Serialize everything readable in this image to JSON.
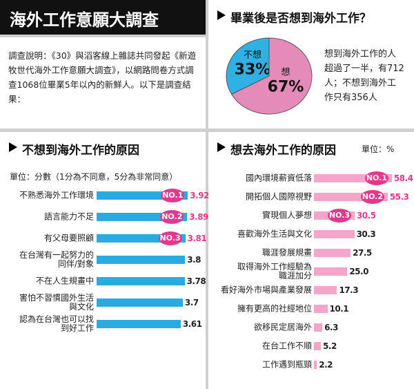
{
  "header": {
    "title": "海外工作意願大調查"
  },
  "intro": "調查說明：《30》與滔客線上雜誌共同發起《新遊牧世代海外工作意願大調查》，以網路問卷方式調查1068位畢業5年以內的新鮮人。以下是調查結果：",
  "chart_data": [
    {
      "type": "pie",
      "title": "畢業後是否想到海外工作？",
      "categories": [
        "想",
        "不想"
      ],
      "values": [
        67,
        33
      ],
      "value_labels": [
        "67%",
        "33%"
      ],
      "colors": [
        "#e48bb9",
        "#2fb1e3"
      ],
      "annotation": "想到海外工作的人超過了一半，有712人；不想到海外工作只有356人"
    },
    {
      "type": "hbar",
      "title": "不想到海外工作的原因",
      "subtitle": "單位：分數（1分為不同意，5分為非常同意）",
      "categories": [
        "不熟悉海外工作環境",
        "語言能力不足",
        "有父母要照顧",
        "在台灣有一起努力的\n同伴/對象",
        "不在人生規畫中",
        "害怕不習慣國外生活\n與文化",
        "認為在台灣也可以找\n到好工作"
      ],
      "values": [
        3.92,
        3.89,
        3.81,
        3.8,
        3.78,
        3.7,
        3.61
      ],
      "color": "#29abe2",
      "highlight_color": "#e3388d",
      "badge_color": "#e3388d",
      "badges": [
        "NO.1",
        "NO.2",
        "NO.3"
      ],
      "xlim": [
        0,
        4
      ]
    },
    {
      "type": "hbar",
      "title": "想去海外工作的原因",
      "subtitle": "單位：%",
      "categories": [
        "國內環境薪資低落",
        "開拓個人國際視野",
        "實現個人夢想",
        "喜歡海外生活與文化",
        "職涯發展規畫",
        "取得海外工作經驗為\n職涯加分",
        "看好海外市場與產業發展",
        "擁有更高的社經地位",
        "欲移民定居海外",
        "在台工作不順",
        "工作遇到瓶頸"
      ],
      "values": [
        58.4,
        55.3,
        30.5,
        30.3,
        27.5,
        25.0,
        17.3,
        10.1,
        6.3,
        5.2,
        2.2
      ],
      "value_labels": [
        "58.4",
        "55.3",
        "30.5",
        "30.3",
        "27.5",
        "25.0",
        "17.3",
        "10.1",
        "6.3",
        "5.2",
        "2.2"
      ],
      "color": "#f4a6ca",
      "highlight_color": "#e3388d",
      "badge_color": "#e3388d",
      "badges": [
        "NO.1",
        "NO.2",
        "NO.3"
      ],
      "xlim": [
        0,
        60
      ]
    }
  ]
}
